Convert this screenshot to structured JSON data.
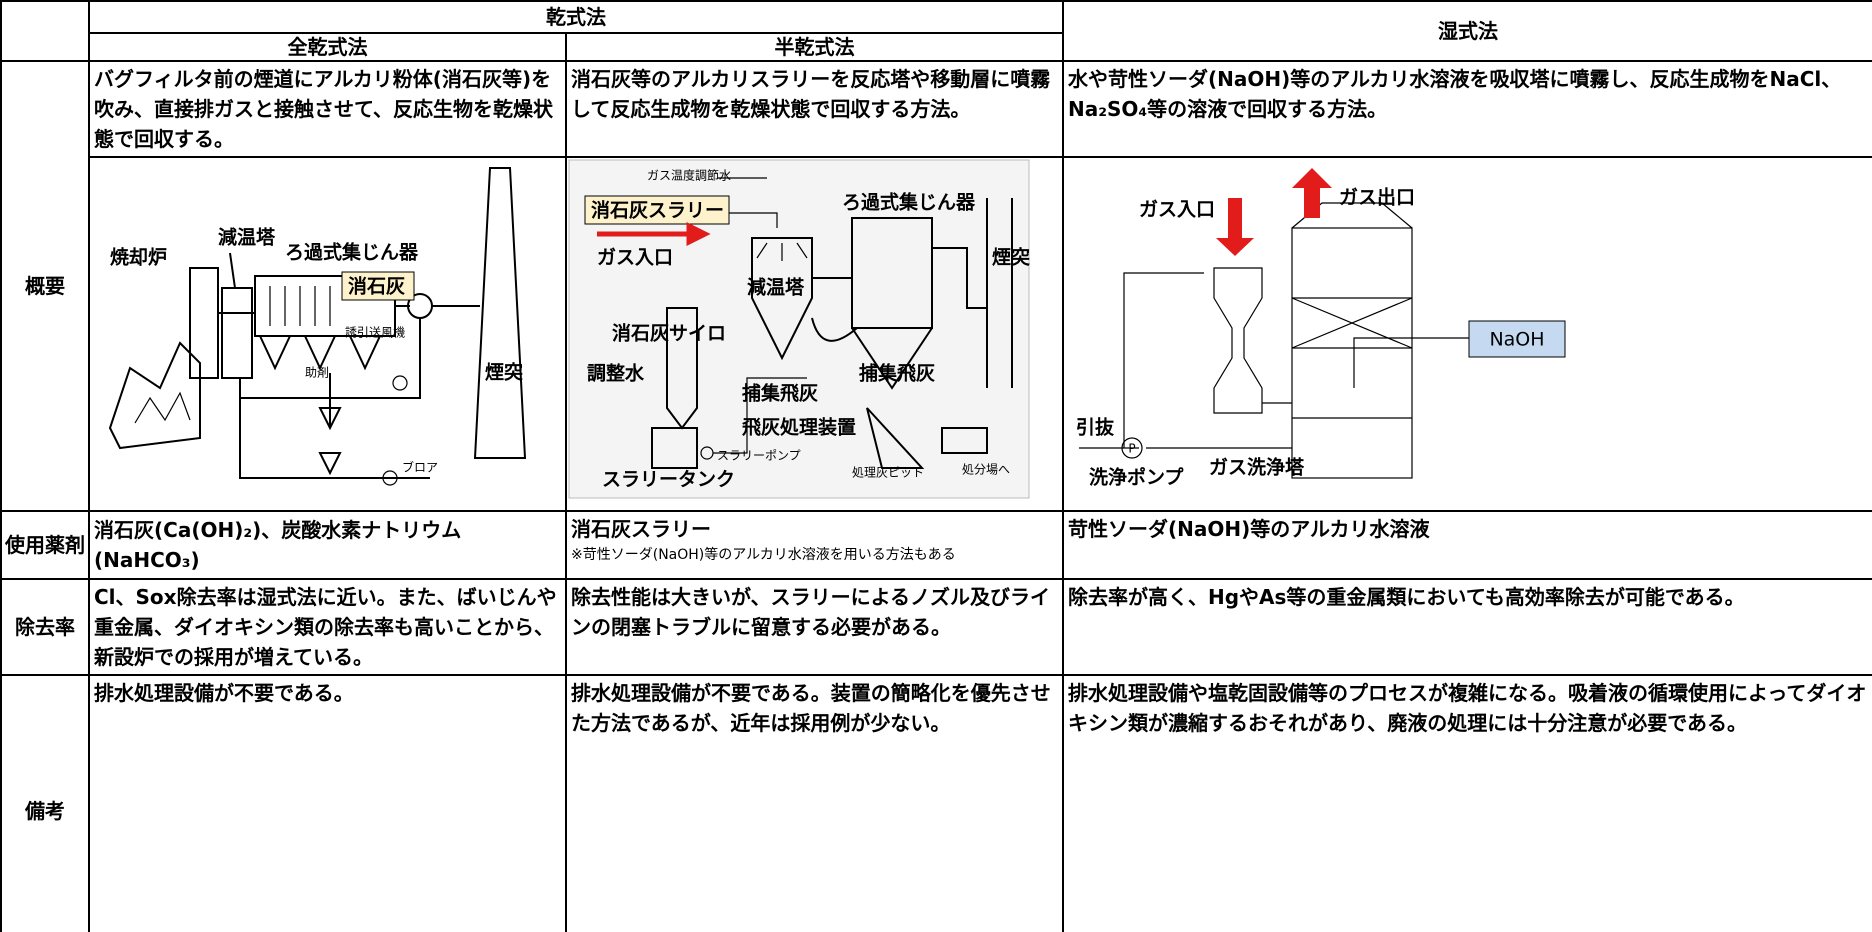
{
  "header": {
    "dry": "乾式法",
    "wet": "湿式法",
    "full_dry": "全乾式法",
    "semi_dry": "半乾式法"
  },
  "rows": [
    {
      "label": "概要",
      "full_dry": "バグフィルタ前の煙道にアルカリ粉体(消石灰等)を吹み、直接排ガスと接触させて、反応生物を乾燥状態で回収する。",
      "semi_dry": "消石灰等のアルカリスラリーを反応塔や移動層に噴霧して反応生成物を乾燥状態で回収する方法。",
      "wet": "水や苛性ソーダ(NaOH)等のアルカリ水溶液を吸収塔に噴霧し、反応生成物をNaCl、Na₂SO₄等の溶液で回収する方法。"
    },
    {
      "label": "使用薬剤",
      "full_dry": "消石灰(Ca(OH)₂)、炭酸水素ナトリウム(NaHCO₃)",
      "semi_dry": "消石灰スラリー",
      "semi_dry_note": "※苛性ソーダ(NaOH)等のアルカリ水溶液を用いる方法もある",
      "wet": "苛性ソーダ(NaOH)等のアルカリ水溶液"
    },
    {
      "label": "除去率",
      "full_dry": "Cl、Sox除去率は湿式法に近い。また、ばいじんや重金属、ダイオキシン類の除去率も高いことから、新設炉での採用が増えている。",
      "semi_dry": "除去性能は大きいが、スラリーによるノズル及びラインの閉塞トラブルに留意する必要がある。",
      "wet": "除去率が高く、HgやAs等の重金属類においても高効率除去が可能である。"
    },
    {
      "label": "備考",
      "full_dry": "排水処理設備が不要である。",
      "semi_dry": "排水処理設備が不要である。装置の簡略化を優先させた方法であるが、近年は採用例が少ない。",
      "wet": "排水処理設備や塩乾固設備等のプロセスが複雑になる。吸着液の循環使用によってダイオキシン類が濃縮するおそれがあり、廃液の処理には十分注意が必要である。"
    }
  ],
  "diagrams": {
    "full_dry": [
      "焼却炉",
      "減温塔",
      "ろ過式集じん器",
      "消石灰",
      "煙突",
      "誘引送風機",
      "助剤",
      "ブロア"
    ],
    "semi_dry": [
      "ガス温度調節水",
      "消石灰スラリー",
      "ガス入口",
      "ろ過式集じん器",
      "煙突",
      "減温塔",
      "消石灰サイロ",
      "調整水",
      "捕集飛灰",
      "捕集飛灰",
      "飛灰処理装置",
      "スラリーポンプ",
      "スラリータンク",
      "処理灰ピット",
      "処分場へ"
    ],
    "wet": [
      "ガス入口",
      "ガス出口",
      "NaOH",
      "引抜",
      "P",
      "洗浄ポンプ",
      "ガス洗浄塔"
    ]
  }
}
